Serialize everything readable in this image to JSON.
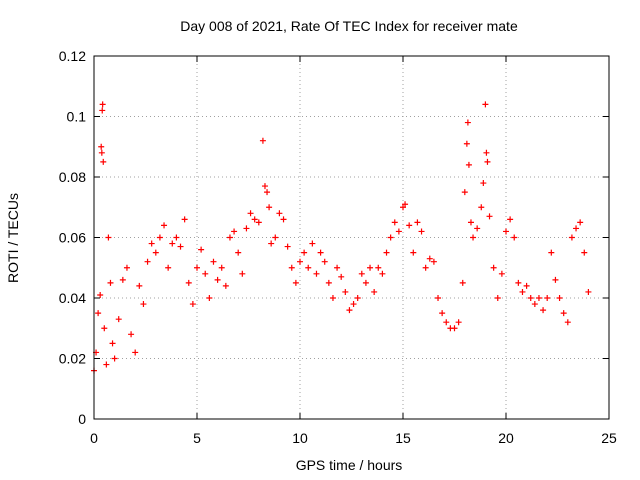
{
  "chart_data": {
    "type": "scatter",
    "title": "Day 008 of 2021, Rate Of TEC Index for receiver mate",
    "xlabel": "GPS time / hours",
    "ylabel": "ROTI / TECUs",
    "xlim": [
      0,
      25
    ],
    "ylim": [
      0,
      0.12
    ],
    "xticks": [
      0,
      5,
      10,
      15,
      20,
      25
    ],
    "xtick_labels": [
      "0",
      "5",
      "10",
      "15",
      "20",
      "25"
    ],
    "yticks": [
      0,
      0.02,
      0.04,
      0.06,
      0.08,
      0.1,
      0.12
    ],
    "ytick_labels": [
      "0",
      "0.02",
      "0.04",
      "0.06",
      "0.08",
      "0.1",
      "0.12"
    ],
    "grid": true,
    "marker": "+",
    "series": [
      {
        "name": "ROTI",
        "color": "#ff0000",
        "points": [
          [
            0.0,
            0.016
          ],
          [
            0.1,
            0.022
          ],
          [
            0.2,
            0.035
          ],
          [
            0.3,
            0.041
          ],
          [
            0.35,
            0.09
          ],
          [
            0.38,
            0.088
          ],
          [
            0.4,
            0.102
          ],
          [
            0.42,
            0.104
          ],
          [
            0.45,
            0.085
          ],
          [
            0.5,
            0.03
          ],
          [
            0.6,
            0.018
          ],
          [
            0.7,
            0.06
          ],
          [
            0.8,
            0.045
          ],
          [
            0.9,
            0.025
          ],
          [
            1.0,
            0.02
          ],
          [
            1.2,
            0.033
          ],
          [
            1.4,
            0.046
          ],
          [
            1.6,
            0.05
          ],
          [
            1.8,
            0.028
          ],
          [
            2.0,
            0.022
          ],
          [
            2.2,
            0.044
          ],
          [
            2.4,
            0.038
          ],
          [
            2.6,
            0.052
          ],
          [
            2.8,
            0.058
          ],
          [
            3.0,
            0.055
          ],
          [
            3.2,
            0.06
          ],
          [
            3.4,
            0.064
          ],
          [
            3.6,
            0.05
          ],
          [
            3.8,
            0.058
          ],
          [
            4.0,
            0.06
          ],
          [
            4.2,
            0.057
          ],
          [
            4.4,
            0.066
          ],
          [
            4.6,
            0.045
          ],
          [
            4.8,
            0.038
          ],
          [
            5.0,
            0.05
          ],
          [
            5.2,
            0.056
          ],
          [
            5.4,
            0.048
          ],
          [
            5.6,
            0.04
          ],
          [
            5.8,
            0.052
          ],
          [
            6.0,
            0.046
          ],
          [
            6.2,
            0.05
          ],
          [
            6.4,
            0.044
          ],
          [
            6.6,
            0.06
          ],
          [
            6.8,
            0.062
          ],
          [
            7.0,
            0.055
          ],
          [
            7.2,
            0.048
          ],
          [
            7.4,
            0.063
          ],
          [
            7.6,
            0.068
          ],
          [
            7.8,
            0.066
          ],
          [
            8.0,
            0.065
          ],
          [
            8.2,
            0.092
          ],
          [
            8.3,
            0.077
          ],
          [
            8.4,
            0.075
          ],
          [
            8.5,
            0.07
          ],
          [
            8.6,
            0.058
          ],
          [
            8.8,
            0.06
          ],
          [
            9.0,
            0.068
          ],
          [
            9.2,
            0.066
          ],
          [
            9.4,
            0.057
          ],
          [
            9.6,
            0.05
          ],
          [
            9.8,
            0.045
          ],
          [
            10.0,
            0.052
          ],
          [
            10.2,
            0.055
          ],
          [
            10.4,
            0.05
          ],
          [
            10.6,
            0.058
          ],
          [
            10.8,
            0.048
          ],
          [
            11.0,
            0.055
          ],
          [
            11.2,
            0.052
          ],
          [
            11.4,
            0.045
          ],
          [
            11.6,
            0.04
          ],
          [
            11.8,
            0.05
          ],
          [
            12.0,
            0.047
          ],
          [
            12.2,
            0.042
          ],
          [
            12.4,
            0.036
          ],
          [
            12.6,
            0.038
          ],
          [
            12.8,
            0.04
          ],
          [
            13.0,
            0.048
          ],
          [
            13.2,
            0.045
          ],
          [
            13.4,
            0.05
          ],
          [
            13.6,
            0.042
          ],
          [
            13.8,
            0.05
          ],
          [
            14.0,
            0.048
          ],
          [
            14.2,
            0.055
          ],
          [
            14.4,
            0.06
          ],
          [
            14.6,
            0.065
          ],
          [
            14.8,
            0.062
          ],
          [
            15.0,
            0.07
          ],
          [
            15.1,
            0.071
          ],
          [
            15.3,
            0.064
          ],
          [
            15.5,
            0.055
          ],
          [
            15.7,
            0.065
          ],
          [
            15.9,
            0.062
          ],
          [
            16.1,
            0.05
          ],
          [
            16.3,
            0.053
          ],
          [
            16.5,
            0.052
          ],
          [
            16.7,
            0.04
          ],
          [
            16.9,
            0.035
          ],
          [
            17.1,
            0.032
          ],
          [
            17.3,
            0.03
          ],
          [
            17.5,
            0.03
          ],
          [
            17.7,
            0.032
          ],
          [
            17.9,
            0.045
          ],
          [
            18.0,
            0.075
          ],
          [
            18.1,
            0.091
          ],
          [
            18.15,
            0.098
          ],
          [
            18.2,
            0.084
          ],
          [
            18.3,
            0.065
          ],
          [
            18.4,
            0.06
          ],
          [
            18.6,
            0.063
          ],
          [
            18.8,
            0.07
          ],
          [
            18.9,
            0.078
          ],
          [
            19.0,
            0.104
          ],
          [
            19.05,
            0.088
          ],
          [
            19.1,
            0.085
          ],
          [
            19.2,
            0.067
          ],
          [
            19.4,
            0.05
          ],
          [
            19.6,
            0.04
          ],
          [
            19.8,
            0.048
          ],
          [
            20.0,
            0.062
          ],
          [
            20.2,
            0.066
          ],
          [
            20.4,
            0.06
          ],
          [
            20.6,
            0.045
          ],
          [
            20.8,
            0.042
          ],
          [
            21.0,
            0.044
          ],
          [
            21.2,
            0.04
          ],
          [
            21.4,
            0.038
          ],
          [
            21.6,
            0.04
          ],
          [
            21.8,
            0.036
          ],
          [
            22.0,
            0.04
          ],
          [
            22.2,
            0.055
          ],
          [
            22.4,
            0.046
          ],
          [
            22.6,
            0.04
          ],
          [
            22.8,
            0.035
          ],
          [
            23.0,
            0.032
          ],
          [
            23.2,
            0.06
          ],
          [
            23.4,
            0.063
          ],
          [
            23.6,
            0.065
          ],
          [
            23.8,
            0.055
          ],
          [
            24.0,
            0.042
          ]
        ]
      }
    ]
  }
}
